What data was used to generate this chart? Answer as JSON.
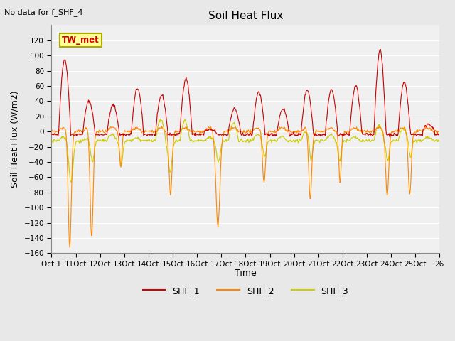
{
  "title": "Soil Heat Flux",
  "ylabel": "Soil Heat Flux (W/m2)",
  "xlabel": "Time",
  "annotation": "No data for f_SHF_4",
  "watermark": "TW_met",
  "ylim": [
    -160,
    140
  ],
  "yticks": [
    -160,
    -140,
    -120,
    -100,
    -80,
    -60,
    -40,
    -20,
    0,
    20,
    40,
    60,
    80,
    100,
    120
  ],
  "n_days": 16,
  "colors": {
    "SHF_1": "#CC0000",
    "SHF_2": "#FF8800",
    "SHF_3": "#CCCC00"
  },
  "xtick_labels": [
    "Oct 1",
    "11Oct",
    "12Oct",
    "13Oct",
    "14Oct",
    "15Oct",
    "16Oct",
    "17Oct",
    "18Oct",
    "19Oct",
    "20Oct",
    "21Oct",
    "22Oct",
    "23Oct",
    "24Oct",
    "25Oct",
    "26"
  ],
  "background_color": "#E8E8E8",
  "plot_bg_color": "#F0F0F0",
  "grid_color": "white",
  "fig_width": 6.4,
  "fig_height": 4.8,
  "dpi": 100
}
